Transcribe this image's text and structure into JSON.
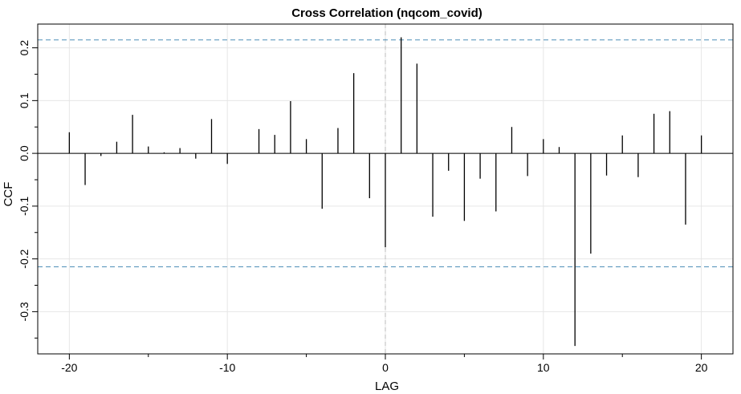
{
  "chart_data": {
    "type": "bar",
    "title": "Cross Correlation (nqcom_covid)",
    "xlabel": "LAG",
    "ylabel": "CCF",
    "xlim": [
      -22,
      22
    ],
    "ylim": [
      -0.38,
      0.245
    ],
    "x_ticks": [
      -20,
      -10,
      0,
      10,
      20
    ],
    "x_tick_labels": [
      "-20",
      "-10",
      "0",
      "10",
      "20"
    ],
    "x_minor_ticks": [
      -15,
      -5,
      5,
      15
    ],
    "y_ticks": [
      -0.3,
      -0.2,
      -0.1,
      0.0,
      0.1,
      0.2
    ],
    "y_tick_labels": [
      "-0.3",
      "-0.2",
      "-0.1",
      "0.0",
      "0.1",
      "0.2"
    ],
    "y_minor_ticks": [
      -0.35,
      -0.25,
      -0.15,
      -0.05,
      0.05,
      0.15
    ],
    "grid": true,
    "confidence_bounds": [
      0.215,
      -0.215
    ],
    "colors": {
      "bars": "#000000",
      "bounds": "#4f8fb8",
      "grid": "#e6e6e6",
      "zero_vline": "#bbbbbb"
    },
    "lags": [
      -20,
      -19,
      -18,
      -17,
      -16,
      -15,
      -14,
      -13,
      -12,
      -11,
      -10,
      -9,
      -8,
      -7,
      -6,
      -5,
      -4,
      -3,
      -2,
      -1,
      0,
      1,
      2,
      3,
      4,
      5,
      6,
      7,
      8,
      9,
      10,
      11,
      12,
      13,
      14,
      15,
      16,
      17,
      18,
      19,
      20
    ],
    "values": [
      0.04,
      -0.06,
      -0.005,
      0.022,
      0.073,
      0.013,
      0.002,
      0.01,
      -0.01,
      0.065,
      -0.02,
      0.0,
      0.046,
      0.035,
      0.099,
      0.027,
      -0.105,
      0.048,
      0.152,
      -0.085,
      -0.178,
      0.22,
      0.17,
      -0.12,
      -0.033,
      -0.128,
      -0.048,
      -0.11,
      0.05,
      -0.043,
      0.027,
      0.012,
      -0.365,
      -0.19,
      -0.042,
      0.034,
      -0.045,
      0.075,
      0.08,
      -0.135,
      0.034
    ]
  }
}
